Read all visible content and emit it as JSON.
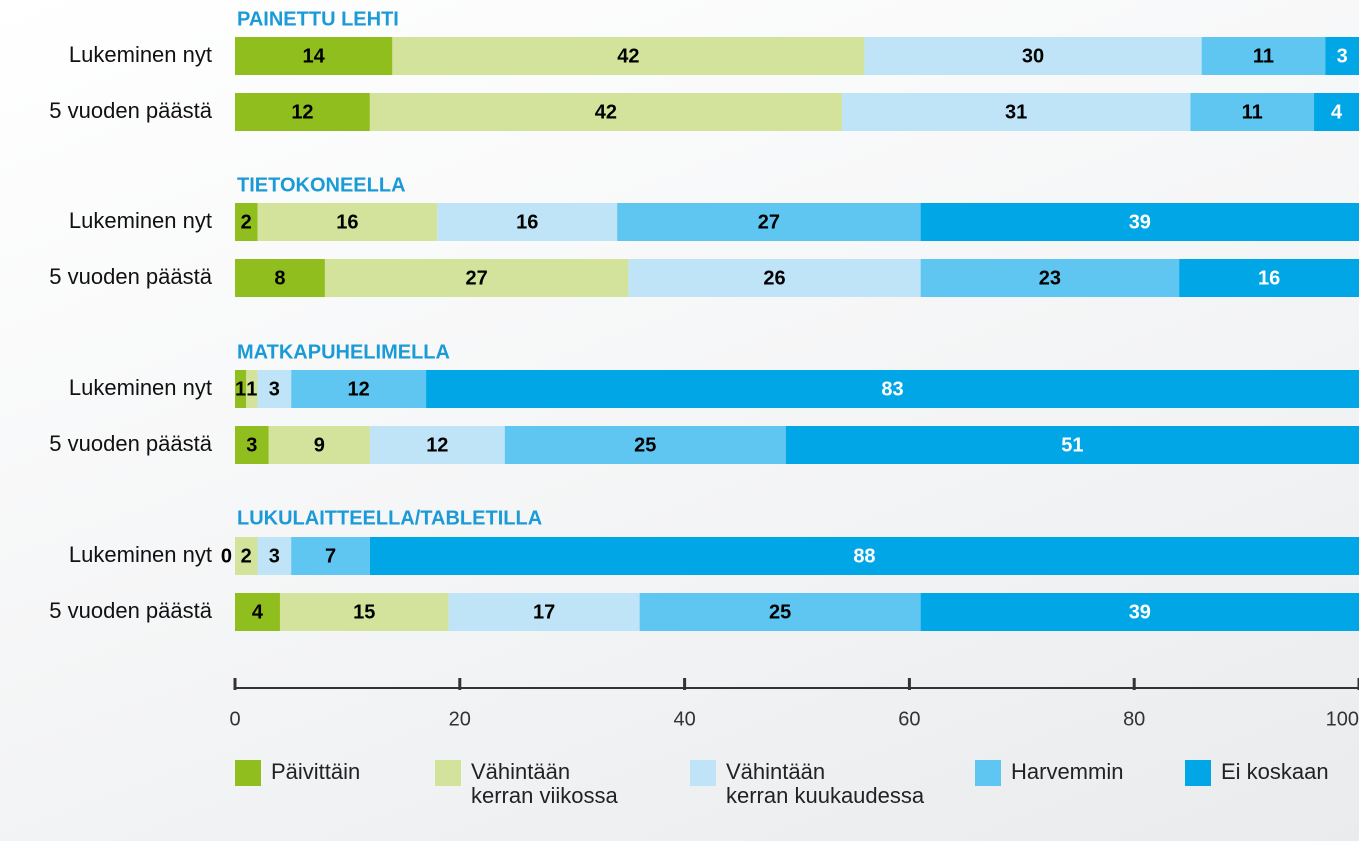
{
  "chart_data": {
    "type": "bar",
    "orientation": "horizontal",
    "stacked": true,
    "groups": [
      "PAINETTU LEHTI",
      "TIETOKONEELLA",
      "MATKAPUHELIMELLA",
      "LUKULAITTEELLA/TABLETILLA"
    ],
    "categories": [
      "Lukeminen nyt",
      "5 vuoden päästä",
      "Lukeminen nyt",
      "5 vuoden päästä",
      "Lukeminen nyt",
      "5 vuoden päästä",
      "Lukeminen nyt",
      "5 vuoden päästä"
    ],
    "series": [
      {
        "name": "Päivittäin",
        "color": "#8fbe1e",
        "label_color": "#000000",
        "values": [
          14,
          12,
          2,
          8,
          1,
          3,
          0,
          4
        ]
      },
      {
        "name": "Vähintään\nkerran viikossa",
        "color": "#d3e39b",
        "label_color": "#000000",
        "values": [
          42,
          42,
          16,
          27,
          1,
          9,
          2,
          15
        ]
      },
      {
        "name": "Vähintään\nkerran kuukaudessa",
        "color": "#c0e4f7",
        "label_color": "#000000",
        "values": [
          30,
          31,
          16,
          26,
          3,
          12,
          3,
          17
        ]
      },
      {
        "name": "Harvemmin",
        "color": "#5fc5f1",
        "label_color": "#000000",
        "values": [
          11,
          11,
          27,
          23,
          12,
          25,
          7,
          25
        ]
      },
      {
        "name": "Ei koskaan",
        "color": "#00a6e5",
        "label_color": "#ffffff",
        "values": [
          3,
          4,
          39,
          16,
          83,
          51,
          88,
          39
        ]
      }
    ],
    "xlim": [
      0,
      100
    ],
    "xticks": [
      0,
      20,
      40,
      60,
      80,
      100
    ]
  }
}
